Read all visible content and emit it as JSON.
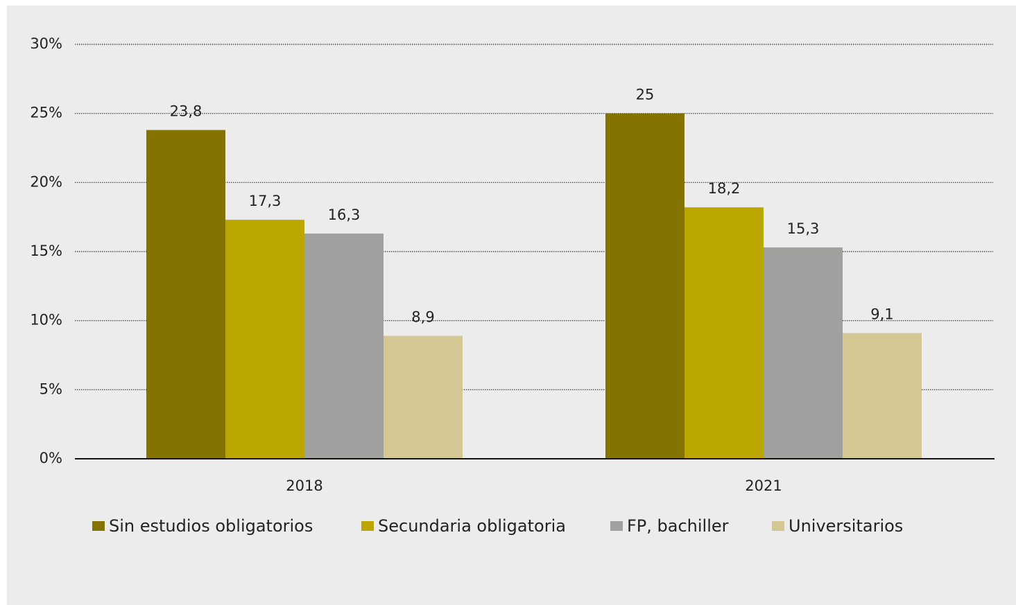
{
  "chart_data": {
    "type": "bar",
    "categories": [
      "2018",
      "2021"
    ],
    "series": [
      {
        "name": "Sin estudios obligatorios",
        "color": "#847300",
        "values": [
          23.8,
          25
        ],
        "value_labels": [
          "23,8",
          "25"
        ]
      },
      {
        "name": "Secundaria obligatoria",
        "color": "#bca600",
        "values": [
          17.3,
          18.2
        ],
        "value_labels": [
          "17,3",
          "18,2"
        ]
      },
      {
        "name": "FP, bachiller",
        "color": "#a0a09e",
        "values": [
          16.3,
          15.3
        ],
        "value_labels": [
          "16,3",
          "15,3"
        ]
      },
      {
        "name": "Universitarios",
        "color": "#d3c794",
        "values": [
          8.9,
          9.1
        ],
        "value_labels": [
          "8,9",
          "9,1"
        ]
      }
    ],
    "ylim": [
      0,
      30
    ],
    "yticks": [
      {
        "value": 0,
        "label": "0%"
      },
      {
        "value": 5,
        "label": "5%"
      },
      {
        "value": 10,
        "label": "10%"
      },
      {
        "value": 15,
        "label": "15%"
      },
      {
        "value": 20,
        "label": "20%"
      },
      {
        "value": 25,
        "label": "25%"
      },
      {
        "value": 30,
        "label": "30%"
      }
    ],
    "grid": true,
    "legend": "bottom"
  }
}
